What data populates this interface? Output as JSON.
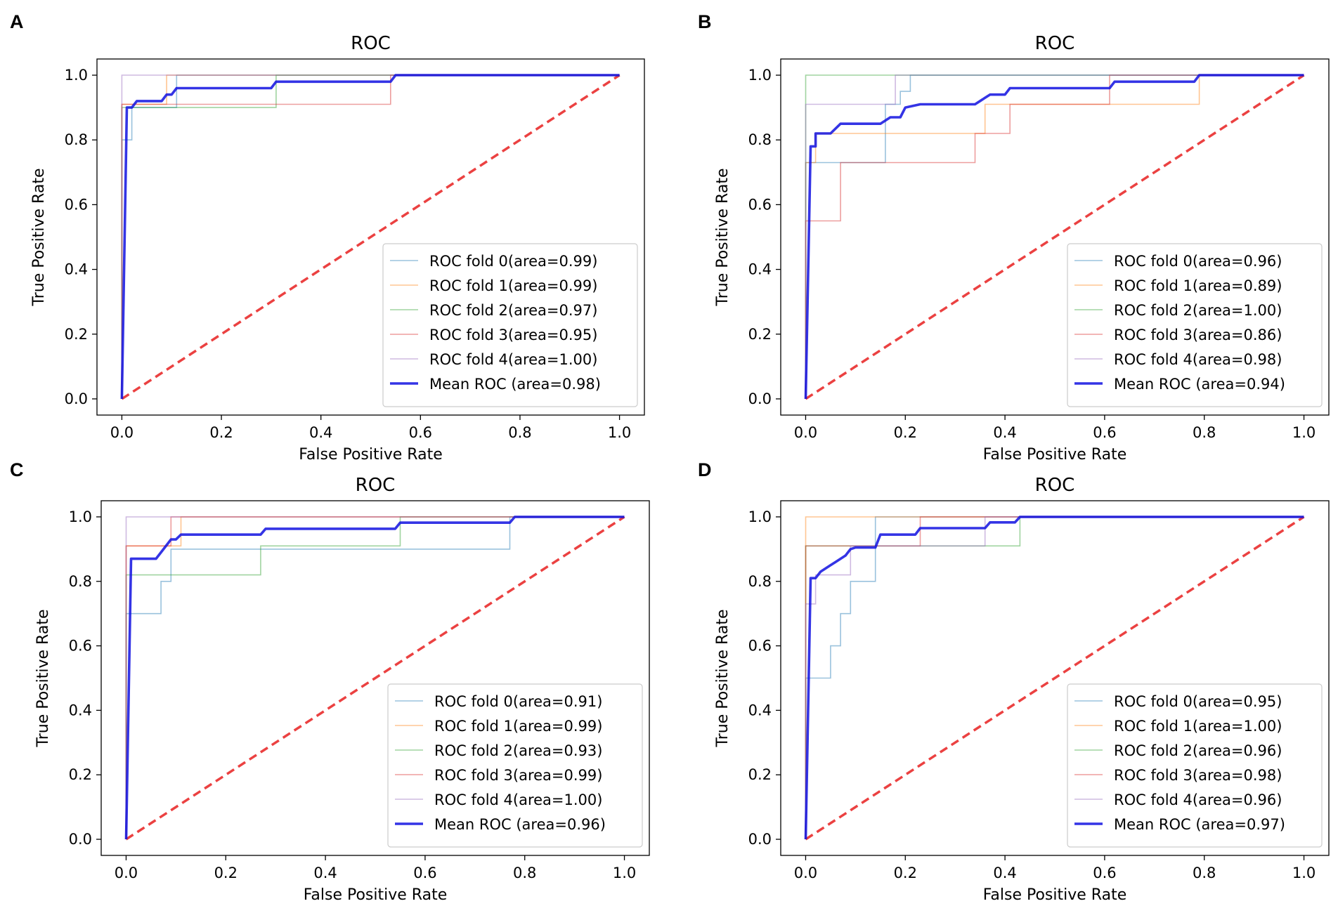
{
  "colors": {
    "fold": [
      "#1f77b4",
      "#ff7f0e",
      "#2ca02c",
      "#d62728",
      "#9467bd"
    ],
    "mean": "#1010e0",
    "chance": "#e82020",
    "frame": "#000000"
  },
  "chart_data": [
    {
      "panel": "A",
      "type": "line",
      "title": "ROC",
      "xlabel": "False Positive Rate",
      "ylabel": "True Positive Rate",
      "xlim": [
        -0.05,
        1.05
      ],
      "ylim": [
        -0.05,
        1.05
      ],
      "xticks": [
        "0.0",
        "0.2",
        "0.4",
        "0.6",
        "0.8",
        "1.0"
      ],
      "yticks": [
        "0.0",
        "0.2",
        "0.4",
        "0.6",
        "0.8",
        "1.0"
      ],
      "legend_loc": "lower-right",
      "series": [
        {
          "name": "ROC fold 0(area=0.99)",
          "x": [
            0,
            0,
            0.02,
            0.02,
            0.11,
            0.11,
            1.0
          ],
          "y": [
            0,
            0.8,
            0.8,
            0.9,
            0.9,
            1.0,
            1.0
          ]
        },
        {
          "name": "ROC fold 1(area=0.99)",
          "x": [
            0,
            0,
            0.09,
            0.09,
            1.0
          ],
          "y": [
            0,
            0.91,
            0.91,
            1.0,
            1.0
          ]
        },
        {
          "name": "ROC fold 2(area=0.97)",
          "x": [
            0,
            0,
            0.31,
            0.31,
            1.0
          ],
          "y": [
            0,
            0.9,
            0.9,
            1.0,
            1.0
          ]
        },
        {
          "name": "ROC fold 3(area=0.95)",
          "x": [
            0,
            0,
            0.54,
            0.54,
            1.0
          ],
          "y": [
            0,
            0.91,
            0.91,
            1.0,
            1.0
          ]
        },
        {
          "name": "ROC fold 4(area=1.00)",
          "x": [
            0,
            0,
            1.0
          ],
          "y": [
            0,
            1.0,
            1.0
          ]
        },
        {
          "name": "Mean ROC (area=0.98)",
          "mean": true,
          "x": [
            0,
            0.01,
            0.02,
            0.03,
            0.08,
            0.09,
            0.1,
            0.11,
            0.2,
            0.3,
            0.31,
            0.5,
            0.54,
            0.55,
            0.8,
            1.0
          ],
          "y": [
            0,
            0.9,
            0.9,
            0.92,
            0.92,
            0.94,
            0.94,
            0.96,
            0.96,
            0.96,
            0.98,
            0.98,
            0.98,
            1.0,
            1.0,
            1.0
          ]
        }
      ]
    },
    {
      "panel": "B",
      "type": "line",
      "title": "ROC",
      "xlabel": "False Positive Rate",
      "ylabel": "True Positive Rate",
      "xlim": [
        -0.05,
        1.05
      ],
      "ylim": [
        -0.05,
        1.05
      ],
      "xticks": [
        "0.0",
        "0.2",
        "0.4",
        "0.6",
        "0.8",
        "1.0"
      ],
      "yticks": [
        "0.0",
        "0.2",
        "0.4",
        "0.6",
        "0.8",
        "1.0"
      ],
      "legend_loc": "lower-right",
      "series": [
        {
          "name": "ROC fold 0(area=0.96)",
          "x": [
            0,
            0,
            0.16,
            0.16,
            0.19,
            0.19,
            0.21,
            0.21,
            1.0
          ],
          "y": [
            0,
            0.73,
            0.73,
            0.91,
            0.91,
            0.95,
            0.95,
            1.0,
            1.0
          ]
        },
        {
          "name": "ROC fold 1(area=0.89)",
          "x": [
            0,
            0,
            0.02,
            0.02,
            0.36,
            0.36,
            0.79,
            0.79,
            1.0
          ],
          "y": [
            0,
            0.73,
            0.73,
            0.82,
            0.82,
            0.91,
            0.91,
            1.0,
            1.0
          ]
        },
        {
          "name": "ROC fold 2(area=1.00)",
          "x": [
            0,
            0,
            1.0
          ],
          "y": [
            0,
            1.0,
            1.0
          ]
        },
        {
          "name": "ROC fold 3(area=0.86)",
          "x": [
            0,
            0,
            0.07,
            0.07,
            0.34,
            0.34,
            0.41,
            0.41,
            0.61,
            0.61,
            1.0
          ],
          "y": [
            0,
            0.55,
            0.55,
            0.73,
            0.73,
            0.82,
            0.82,
            0.91,
            0.91,
            1.0,
            1.0
          ]
        },
        {
          "name": "ROC fold 4(area=0.98)",
          "x": [
            0,
            0,
            0.18,
            0.18,
            1.0
          ],
          "y": [
            0,
            0.91,
            0.91,
            1.0,
            1.0
          ]
        },
        {
          "name": "Mean ROC (area=0.94)",
          "mean": true,
          "x": [
            0,
            0.01,
            0.02,
            0.02,
            0.05,
            0.07,
            0.15,
            0.17,
            0.19,
            0.2,
            0.23,
            0.29,
            0.34,
            0.36,
            0.37,
            0.4,
            0.41,
            0.52,
            0.61,
            0.62,
            0.78,
            0.79,
            1.0
          ],
          "y": [
            0,
            0.78,
            0.78,
            0.82,
            0.82,
            0.85,
            0.85,
            0.87,
            0.87,
            0.9,
            0.91,
            0.91,
            0.91,
            0.93,
            0.94,
            0.94,
            0.96,
            0.96,
            0.96,
            0.98,
            0.98,
            1.0,
            1.0
          ]
        }
      ]
    },
    {
      "panel": "C",
      "type": "line",
      "title": "ROC",
      "xlabel": "False Positive Rate",
      "ylabel": "True Positive Rate",
      "xlim": [
        -0.05,
        1.05
      ],
      "ylim": [
        -0.05,
        1.05
      ],
      "xticks": [
        "0.0",
        "0.2",
        "0.4",
        "0.6",
        "0.8",
        "1.0"
      ],
      "yticks": [
        "0.0",
        "0.2",
        "0.4",
        "0.6",
        "0.8",
        "1.0"
      ],
      "legend_loc": "lower-right",
      "series": [
        {
          "name": "ROC fold 0(area=0.91)",
          "x": [
            0,
            0,
            0.07,
            0.07,
            0.09,
            0.09,
            0.77,
            0.77,
            1.0
          ],
          "y": [
            0,
            0.7,
            0.7,
            0.8,
            0.8,
            0.9,
            0.9,
            1.0,
            1.0
          ]
        },
        {
          "name": "ROC fold 1(area=0.99)",
          "x": [
            0,
            0,
            0.11,
            0.11,
            1.0
          ],
          "y": [
            0,
            0.91,
            0.91,
            1.0,
            1.0
          ]
        },
        {
          "name": "ROC fold 2(area=0.93)",
          "x": [
            0,
            0,
            0.27,
            0.27,
            0.55,
            0.55,
            1.0
          ],
          "y": [
            0,
            0.82,
            0.82,
            0.91,
            0.91,
            1.0,
            1.0
          ]
        },
        {
          "name": "ROC fold 3(area=0.99)",
          "x": [
            0,
            0,
            0.09,
            0.09,
            1.0
          ],
          "y": [
            0,
            0.91,
            0.91,
            1.0,
            1.0
          ]
        },
        {
          "name": "ROC fold 4(area=1.00)",
          "x": [
            0,
            0,
            1.0
          ],
          "y": [
            0,
            1.0,
            1.0
          ]
        },
        {
          "name": "Mean ROC (area=0.96)",
          "mean": true,
          "x": [
            0,
            0.01,
            0.06,
            0.07,
            0.09,
            0.1,
            0.11,
            0.27,
            0.28,
            0.54,
            0.55,
            0.77,
            0.78,
            1.0
          ],
          "y": [
            0,
            0.87,
            0.87,
            0.89,
            0.93,
            0.93,
            0.945,
            0.945,
            0.963,
            0.963,
            0.982,
            0.982,
            1.0,
            1.0
          ]
        }
      ]
    },
    {
      "panel": "D",
      "type": "line",
      "title": "ROC",
      "xlabel": "False Positive Rate",
      "ylabel": "True Positive Rate",
      "xlim": [
        -0.05,
        1.05
      ],
      "ylim": [
        -0.05,
        1.05
      ],
      "xticks": [
        "0.0",
        "0.2",
        "0.4",
        "0.6",
        "0.8",
        "1.0"
      ],
      "yticks": [
        "0.0",
        "0.2",
        "0.4",
        "0.6",
        "0.8",
        "1.0"
      ],
      "legend_loc": "lower-right",
      "series": [
        {
          "name": "ROC fold 0(area=0.95)",
          "x": [
            0,
            0,
            0.05,
            0.05,
            0.07,
            0.07,
            0.09,
            0.09,
            0.11,
            0.11,
            0.14,
            0.14,
            1.0
          ],
          "y": [
            0,
            0.5,
            0.5,
            0.6,
            0.6,
            0.7,
            0.7,
            0.8,
            0.8,
            0.8,
            0.8,
            1.0,
            1.0
          ]
        },
        {
          "name": "ROC fold 1(area=1.00)",
          "x": [
            0,
            0,
            1.0
          ],
          "y": [
            0,
            1.0,
            1.0
          ]
        },
        {
          "name": "ROC fold 2(area=0.96)",
          "x": [
            0,
            0,
            0.43,
            0.43,
            1.0
          ],
          "y": [
            0,
            0.91,
            0.91,
            1.0,
            1.0
          ]
        },
        {
          "name": "ROC fold 3(area=0.98)",
          "x": [
            0,
            0,
            0.23,
            0.23,
            1.0
          ],
          "y": [
            0,
            0.91,
            0.91,
            1.0,
            1.0
          ]
        },
        {
          "name": "ROC fold 4(area=0.96)",
          "x": [
            0,
            0,
            0.02,
            0.02,
            0.09,
            0.09,
            0.36,
            0.36,
            1.0
          ],
          "y": [
            0,
            0.73,
            0.73,
            0.82,
            0.82,
            0.91,
            0.91,
            1.0,
            1.0
          ]
        },
        {
          "name": "Mean ROC (area=0.97)",
          "mean": true,
          "x": [
            0,
            0.01,
            0.02,
            0.03,
            0.04,
            0.05,
            0.06,
            0.07,
            0.08,
            0.09,
            0.1,
            0.14,
            0.15,
            0.22,
            0.23,
            0.36,
            0.37,
            0.42,
            0.43,
            1.0
          ],
          "y": [
            0,
            0.81,
            0.81,
            0.83,
            0.84,
            0.85,
            0.86,
            0.87,
            0.88,
            0.9,
            0.905,
            0.905,
            0.945,
            0.945,
            0.965,
            0.965,
            0.983,
            0.983,
            1.0,
            1.0
          ]
        }
      ]
    }
  ]
}
